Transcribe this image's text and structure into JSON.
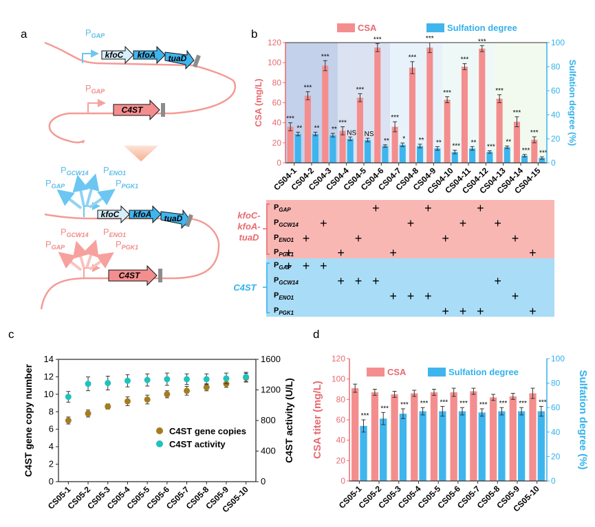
{
  "panels": {
    "a": "a",
    "b": "b",
    "c": "c",
    "d": "d"
  },
  "colors": {
    "pink": "#f48e8e",
    "pink_dark": "#e8696f",
    "pink_band": "#f9b7b3",
    "blue": "#3fb5ee",
    "blue_text": "#32b1ec",
    "blue_band": "#a9dcf6",
    "gold": "#a67c1d",
    "teal": "#1fc2bc"
  },
  "panel_a": {
    "genes_top": [
      "kfoC",
      "kfoA",
      "tuaD"
    ],
    "gene_c4st": "C4ST",
    "promoter_top": {
      "main": "P",
      "sub": "GAP"
    },
    "promoter_mid": {
      "main": "P",
      "sub": "GAP"
    },
    "blue_promoters": [
      {
        "main": "P",
        "sub": "GCW14"
      },
      {
        "main": "P",
        "sub": "ENO1"
      },
      {
        "main": "P",
        "sub": "GAP"
      },
      {
        "main": "P",
        "sub": "PGK1"
      }
    ],
    "pink_promoters": [
      {
        "main": "P",
        "sub": "GCW14"
      },
      {
        "main": "P",
        "sub": "ENO1"
      },
      {
        "main": "P",
        "sub": "GAP"
      },
      {
        "main": "P",
        "sub": "PGK1"
      }
    ]
  },
  "chart_data": [
    {
      "panel": "b",
      "type": "bar",
      "title": "",
      "categories": [
        "CS04-1",
        "CS04-2",
        "CS04-3",
        "CS04-4",
        "CS04-5",
        "CS04-6",
        "CS04-7",
        "CS04-8",
        "CS04-9",
        "CS04-10",
        "CS04-11",
        "CS04-12",
        "CS04-13",
        "CS04-14",
        "CS04-15"
      ],
      "series": [
        {
          "name": "CSA",
          "axis": "left",
          "values": [
            36,
            67,
            97,
            32,
            65,
            115,
            36,
            95,
            115,
            63,
            96,
            114,
            64,
            41,
            23
          ],
          "errors": [
            4,
            4,
            5,
            4,
            4,
            4,
            5,
            6,
            5,
            3,
            3,
            3,
            4,
            5,
            3
          ],
          "sig": [
            "***",
            "***",
            "***",
            "***",
            "***",
            "***",
            "***",
            "***",
            "***",
            "***",
            "***",
            "***",
            "***",
            "***",
            "***"
          ]
        },
        {
          "name": "Sulfation degree",
          "axis": "right",
          "values": [
            24,
            24,
            23,
            20,
            19,
            14,
            15,
            14,
            12,
            9,
            12,
            9,
            13,
            6,
            4
          ],
          "errors": [
            1.5,
            1.5,
            1.5,
            1.5,
            1.5,
            1,
            1.5,
            1.5,
            1.5,
            1.5,
            1.5,
            1,
            1,
            1,
            1
          ],
          "sig": [
            "**",
            "**",
            "**",
            "NS",
            "NS",
            "**",
            "*",
            "**",
            "**",
            "***",
            "**",
            "***",
            "**",
            "***",
            "***"
          ]
        }
      ],
      "ylabel": "CSA (mg/L)",
      "ylim": [
        0,
        120
      ],
      "yticks": [
        0,
        20,
        40,
        60,
        80,
        100,
        120
      ],
      "y2label": "Sulfation degree (%)",
      "y2lim": [
        0,
        100
      ],
      "y2ticks": [
        0,
        20,
        40,
        60,
        80,
        100
      ]
    },
    {
      "panel": "c",
      "type": "scatter",
      "categories": [
        "CS05-1",
        "CS05-2",
        "CS05-3",
        "CS05-4",
        "CS05-5",
        "CS05-6",
        "CS05-7",
        "CS05-8",
        "CS05-9",
        "CS05-10"
      ],
      "series": [
        {
          "name": "C4ST gene copies",
          "axis": "left",
          "values": [
            7.0,
            7.8,
            8.6,
            9.2,
            9.4,
            10.0,
            10.4,
            10.8,
            11.2,
            11.9
          ],
          "errors": [
            0.4,
            0.4,
            0.3,
            0.5,
            0.5,
            0.4,
            0.5,
            0.4,
            0.4,
            0.5
          ]
        },
        {
          "name": "C4ST activity",
          "axis": "right",
          "values": [
            1110,
            1280,
            1290,
            1320,
            1330,
            1340,
            1340,
            1340,
            1350,
            1370
          ],
          "errors": [
            70,
            90,
            90,
            80,
            80,
            80,
            70,
            70,
            70,
            60
          ]
        }
      ],
      "ylabel": "C4ST gene copy number",
      "ylim": [
        0,
        14
      ],
      "yticks": [
        0,
        2,
        4,
        6,
        8,
        10,
        12,
        14
      ],
      "y2label": "C4ST activity (U/L)",
      "y2lim": [
        0,
        1600
      ],
      "y2ticks": [
        0,
        400,
        800,
        1200,
        1600
      ]
    },
    {
      "panel": "d",
      "type": "bar",
      "categories": [
        "CS05-1",
        "CS05-2",
        "CS05-3",
        "CS05-4",
        "CS05-5",
        "CS05-6",
        "CS05-7",
        "CS05-8",
        "CS05-9",
        "CS05-10"
      ],
      "series": [
        {
          "name": "CSA",
          "axis": "left",
          "values": [
            91,
            87,
            85,
            86,
            87,
            87,
            88,
            82,
            83,
            86
          ],
          "errors": [
            4,
            3,
            3,
            3,
            3,
            4,
            3,
            3,
            3,
            5
          ]
        },
        {
          "name": "Sulfation degree",
          "axis": "right",
          "values": [
            45,
            51,
            55,
            57,
            57,
            57,
            56,
            57,
            57,
            57
          ],
          "errors": [
            5,
            5,
            4,
            3,
            4,
            3,
            3,
            3,
            3,
            4
          ],
          "sig": [
            "***",
            "***",
            "***",
            "***",
            "***",
            "***",
            "***",
            "***",
            "***",
            "***"
          ]
        }
      ],
      "ylabel": "CSA titer (mg/L)",
      "ylim": [
        0,
        120
      ],
      "yticks": [
        0,
        20,
        40,
        60,
        80,
        100,
        120
      ],
      "y2label": "Sulfation degree (%)",
      "y2lim": [
        0,
        100
      ],
      "y2ticks": [
        0,
        20,
        40,
        60,
        80,
        100
      ]
    }
  ],
  "promoter_table": {
    "group1_label": [
      "kfoC-",
      "kfoA-",
      "tuaD"
    ],
    "group2_label": "C4ST",
    "rows": [
      {
        "group": 1,
        "main": "P",
        "sub": "GAP",
        "marks": [
          6,
          9,
          12
        ]
      },
      {
        "group": 1,
        "main": "P",
        "sub": "GCW14",
        "marks": [
          3,
          8,
          11,
          13
        ]
      },
      {
        "group": 1,
        "main": "P",
        "sub": "ENO1",
        "marks": [
          2,
          5,
          10,
          14
        ]
      },
      {
        "group": 1,
        "main": "P",
        "sub": "PGK1",
        "marks": [
          1,
          4,
          7,
          15
        ]
      },
      {
        "group": 2,
        "main": "P",
        "sub": "GAP",
        "marks": [
          1,
          2,
          3
        ]
      },
      {
        "group": 2,
        "main": "P",
        "sub": "GCW14",
        "marks": [
          4,
          5,
          6,
          13
        ]
      },
      {
        "group": 2,
        "main": "P",
        "sub": "ENO1",
        "marks": [
          7,
          8,
          9,
          14
        ]
      },
      {
        "group": 2,
        "main": "P",
        "sub": "PGK1",
        "marks": [
          10,
          11,
          12,
          15
        ]
      }
    ],
    "mark_symbol": "+"
  }
}
